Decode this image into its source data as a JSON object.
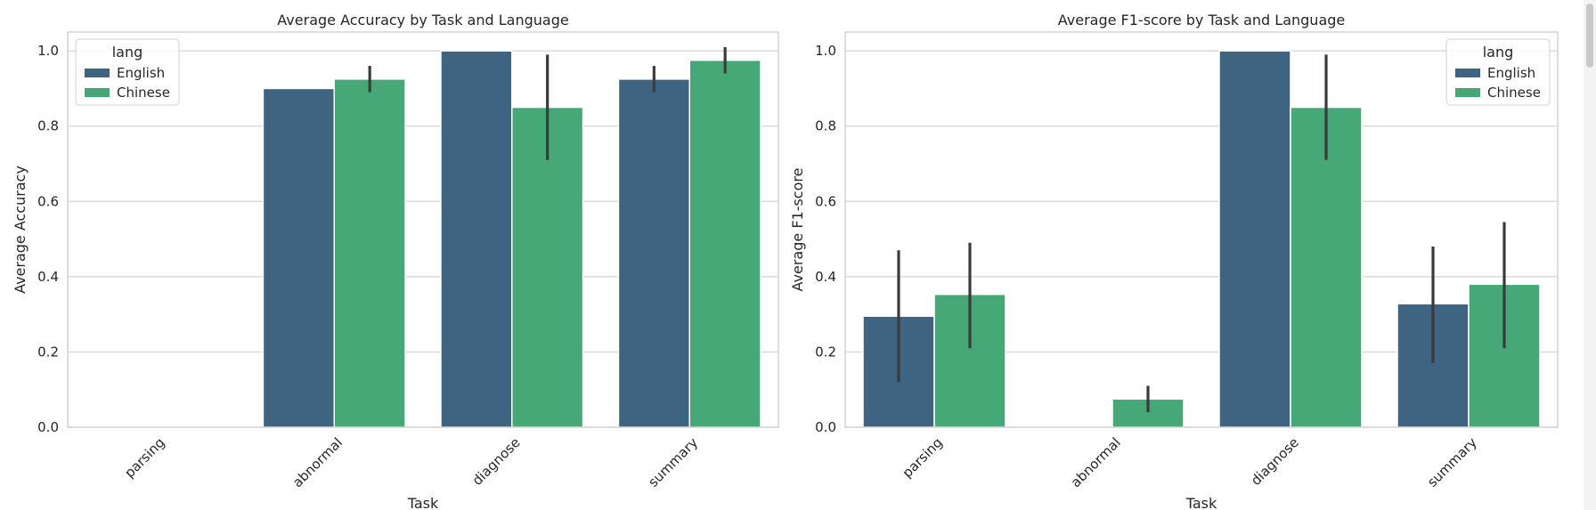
{
  "chart_data": [
    {
      "type": "bar",
      "title": "Average Accuracy by Task and Language",
      "xlabel": "Task",
      "ylabel": "Average Accuracy",
      "ylim": [
        0,
        1.05
      ],
      "yticks": [
        "0.0",
        "0.2",
        "0.4",
        "0.6",
        "0.8",
        "1.0"
      ],
      "categories": [
        "parsing",
        "abnormal",
        "diagnose",
        "summary"
      ],
      "legend": {
        "title": "lang",
        "placement": "top-left"
      },
      "grid": true,
      "series": [
        {
          "name": "English",
          "color": "#3e6482",
          "values": [
            null,
            0.9,
            1.0,
            0.925
          ],
          "errors": [
            null,
            null,
            null,
            [
              0.89,
              0.96
            ]
          ]
        },
        {
          "name": "Chinese",
          "color": "#45a876",
          "values": [
            null,
            0.925,
            0.85,
            0.975
          ],
          "errors": [
            null,
            [
              0.89,
              0.96
            ],
            [
              0.71,
              0.99
            ],
            [
              0.94,
              1.01
            ]
          ]
        }
      ]
    },
    {
      "type": "bar",
      "title": "Average F1-score by Task and Language",
      "xlabel": "Task",
      "ylabel": "Average F1-score",
      "ylim": [
        0,
        1.05
      ],
      "yticks": [
        "0.0",
        "0.2",
        "0.4",
        "0.6",
        "0.8",
        "1.0"
      ],
      "categories": [
        "parsing",
        "abnormal",
        "diagnose",
        "summary"
      ],
      "legend": {
        "title": "lang",
        "placement": "top-right"
      },
      "grid": true,
      "series": [
        {
          "name": "English",
          "color": "#3e6482",
          "values": [
            0.295,
            null,
            1.0,
            0.328
          ],
          "errors": [
            [
              0.12,
              0.47
            ],
            null,
            null,
            [
              0.17,
              0.48
            ]
          ]
        },
        {
          "name": "Chinese",
          "color": "#45a876",
          "values": [
            0.353,
            0.075,
            0.85,
            0.38
          ],
          "errors": [
            [
              0.21,
              0.49
            ],
            [
              0.04,
              0.11
            ],
            [
              0.71,
              0.99
            ],
            [
              0.21,
              0.545
            ]
          ]
        }
      ]
    }
  ]
}
